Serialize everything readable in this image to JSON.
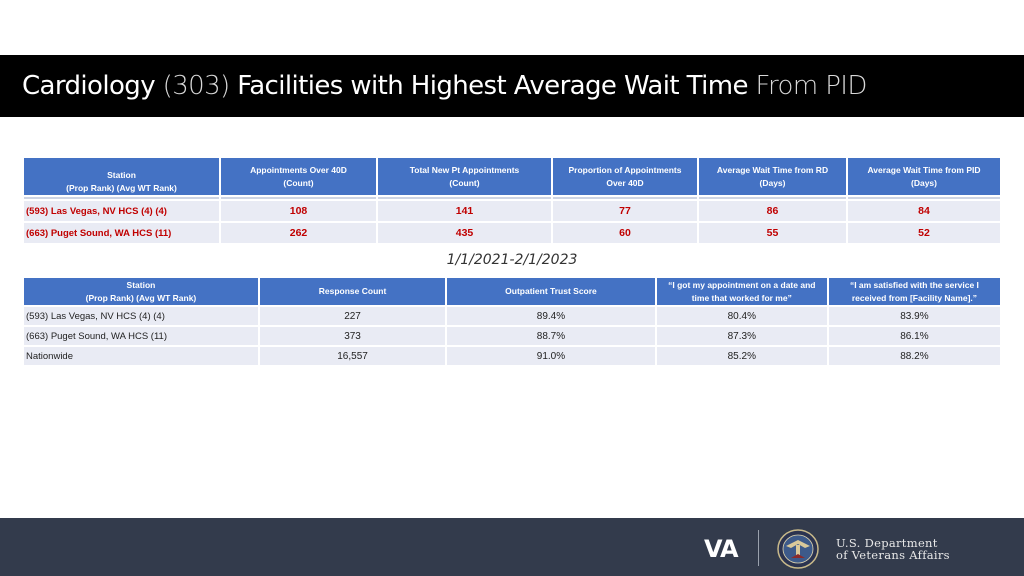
{
  "title": {
    "part1": "Cardiology",
    "part2": "(303)",
    "part3": "Facilities with Highest Average Wait Time",
    "part4": "From PID"
  },
  "table1": {
    "headers": {
      "station_line1": "Station",
      "station_line2": "(Prop Rank) (Avg WT Rank)",
      "col1_line1": "Appointments Over 40D",
      "col1_line2": "(Count)",
      "col2_line1": "Total New Pt Appointments",
      "col2_line2": "(Count)",
      "col3_line1": "Proportion of Appointments",
      "col3_line2": "Over 40D",
      "col4_line1": "Average Wait Time from RD",
      "col4_line2": "(Days)",
      "col5_line1": "Average Wait Time from PID",
      "col5_line2": "(Days)"
    },
    "rows": [
      {
        "station": "(593) Las Vegas, NV HCS (4) (4)",
        "c1": "108",
        "c2": "141",
        "c3": "77",
        "c4": "86",
        "c5": "84"
      },
      {
        "station": "(663) Puget Sound, WA HCS (11)",
        "c1": "262",
        "c2": "435",
        "c3": "60",
        "c4": "55",
        "c5": "52"
      }
    ]
  },
  "date_range": "1/1/2021-2/1/2023",
  "table2": {
    "headers": {
      "station_line1": "Station",
      "station_line2": "(Prop Rank) (Avg WT Rank)",
      "col1": "Response Count",
      "col2": "Outpatient Trust Score",
      "col3_line1": "“I got my appointment on a date and",
      "col3_line2": "time that worked for me”",
      "col4_line1": "“I am satisfied with the service I",
      "col4_line2": "received from [Facility Name].”"
    },
    "rows": [
      {
        "station": "(593) Las Vegas, NV HCS (4) (4)",
        "c1": "227",
        "c2": "89.4%",
        "c3": "80.4%",
        "c4": "83.9%"
      },
      {
        "station": "(663) Puget Sound, WA HCS (11)",
        "c1": "373",
        "c2": "88.7%",
        "c3": "87.3%",
        "c4": "86.1%"
      },
      {
        "station": "Nationwide",
        "c1": "16,557",
        "c2": "91.0%",
        "c3": "85.2%",
        "c4": "88.2%"
      }
    ]
  },
  "footer": {
    "logo_text": "VA",
    "dept_line1": "U.S. Department",
    "dept_line2": "of Veterans Affairs",
    "seal_icon": "va-seal-icon"
  },
  "colors": {
    "header_blue": "#4472c4",
    "cell_bg": "#e9ebf4",
    "highlight_red": "#c00000",
    "title_bar": "#000000",
    "footer_bg": "#333b4c"
  }
}
